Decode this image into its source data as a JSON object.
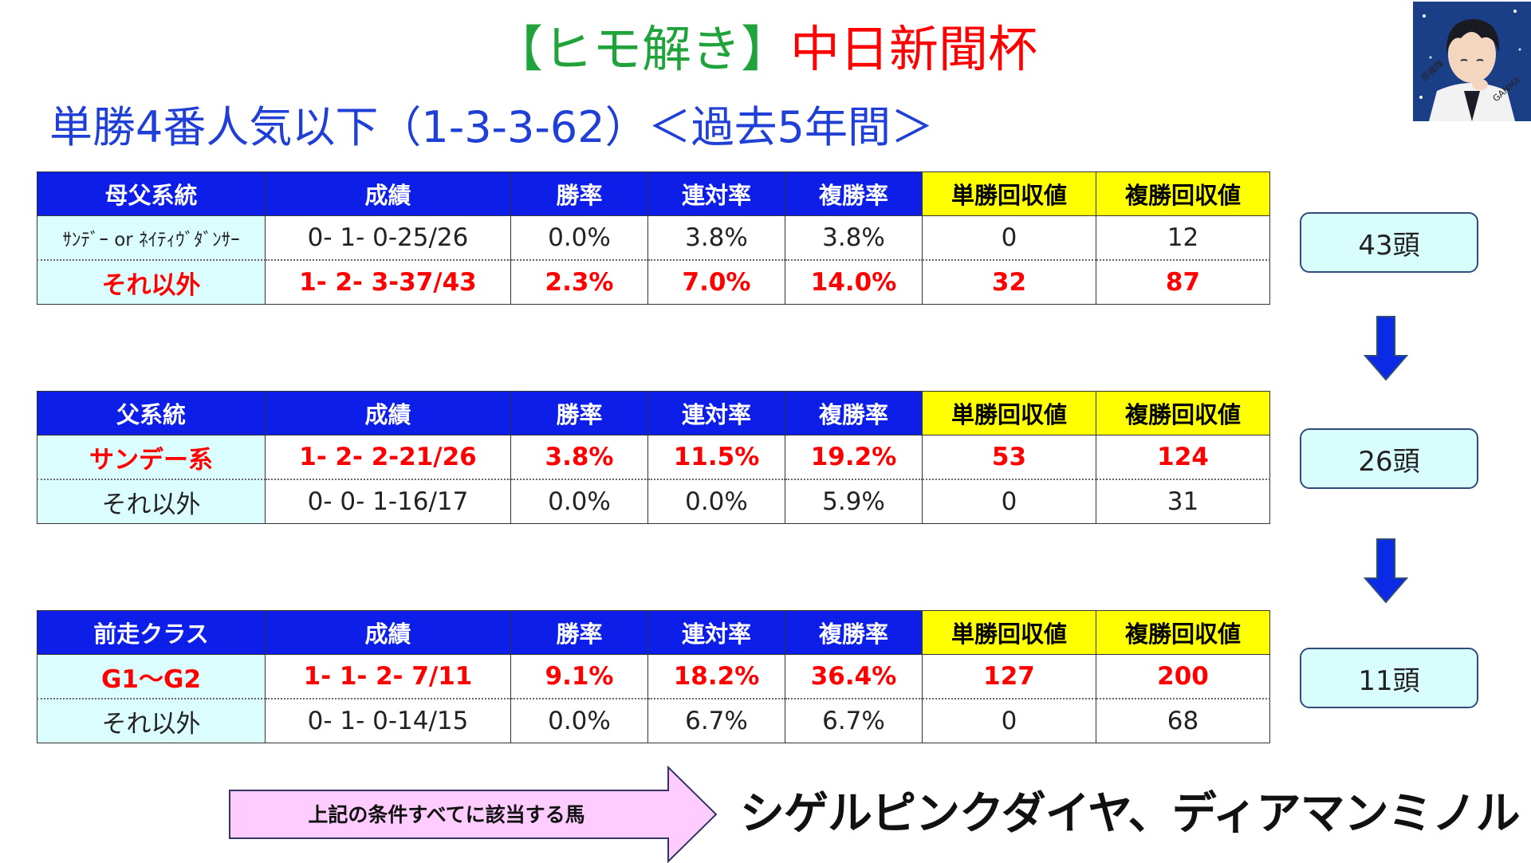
{
  "title": {
    "part1": "【ヒモ解き】",
    "part2": "中日新聞杯"
  },
  "subtitle": "単勝4番人気以下（1-3-3-62）＜過去5年間＞",
  "avatar": {
    "text1": "部複隊",
    "text2": "GANMA"
  },
  "tables": [
    {
      "headers": [
        "母父系統",
        "成績",
        "勝率",
        "連対率",
        "複勝率",
        "単勝回収値",
        "複勝回収値"
      ],
      "rows": [
        [
          "ｻﾝﾃﾞｰ or ﾈｲﾃｨｳﾞﾀﾞﾝｻｰ",
          "0- 1- 0-25/26",
          "0.0%",
          "3.8%",
          "3.8%",
          "0",
          "12"
        ],
        [
          "それ以外",
          "1- 2- 3-37/43",
          "2.3%",
          "7.0%",
          "14.0%",
          "32",
          "87"
        ]
      ],
      "highlight_row": 2,
      "count": "43頭"
    },
    {
      "headers": [
        "父系統",
        "成績",
        "勝率",
        "連対率",
        "複勝率",
        "単勝回収値",
        "複勝回収値"
      ],
      "rows": [
        [
          "サンデー系",
          "1- 2- 2-21/26",
          "3.8%",
          "11.5%",
          "19.2%",
          "53",
          "124"
        ],
        [
          "それ以外",
          "0- 0- 1-16/17",
          "0.0%",
          "0.0%",
          "5.9%",
          "0",
          "31"
        ]
      ],
      "highlight_row": 1,
      "count": "26頭"
    },
    {
      "headers": [
        "前走クラス",
        "成績",
        "勝率",
        "連対率",
        "複勝率",
        "単勝回収値",
        "複勝回収値"
      ],
      "rows": [
        [
          "G1～G2",
          "1- 1- 2- 7/11",
          "9.1%",
          "18.2%",
          "36.4%",
          "127",
          "200"
        ],
        [
          "それ以外",
          "0- 1- 0-14/15",
          "0.0%",
          "6.7%",
          "6.7%",
          "0",
          "68"
        ]
      ],
      "highlight_row": 1,
      "count": "11頭"
    }
  ],
  "conclusion": {
    "arrow_label": "上記の条件すべてに該当する馬",
    "result": "シゲルピンクダイヤ、ディアマンミノル"
  },
  "colors": {
    "header_blue": "#0d1ee8",
    "header_yellow": "#ffff00",
    "label_cyan": "#dbfdfd",
    "highlight_red": "#ff0000",
    "title_green": "#1fa33a",
    "subtitle_blue": "#1f3fd6",
    "arrow_blue": "#0a2ae6",
    "arrow_pink": "#ffccff"
  }
}
